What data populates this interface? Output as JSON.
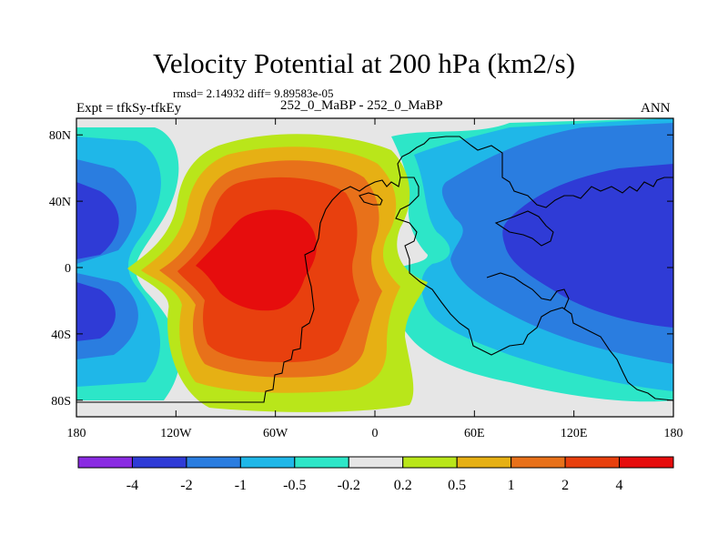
{
  "chart_data": {
    "type": "heatmap",
    "title": "Velocity Potential at 200 hPa (km2/s)",
    "stats_text": "rmsd= 2.14932 diff= 9.89583e-05",
    "experiment": "Expt = tfkSy-tfkEy",
    "cases": "252_0_MaBP - 252_0_MaBP",
    "season": "ANN",
    "x_ticks": [
      "180",
      "120W",
      "60W",
      "0",
      "60E",
      "120E",
      "180"
    ],
    "x_tick_values": [
      -180,
      -120,
      -60,
      0,
      60,
      120,
      180
    ],
    "y_ticks": [
      "80N",
      "40N",
      "0",
      "40S",
      "80S"
    ],
    "y_tick_values": [
      80,
      40,
      0,
      -40,
      -80
    ],
    "xlim": [
      -180,
      180
    ],
    "ylim": [
      -90,
      90
    ],
    "contour_levels": [
      -4,
      -2,
      -1,
      -0.5,
      -0.2,
      0.2,
      0.5,
      1,
      2,
      4
    ],
    "colorbar_labels": [
      "-4",
      "-2",
      "-1",
      "-0.5",
      "-0.2",
      "0.2",
      "0.5",
      "1",
      "2",
      "4"
    ],
    "colorbar_colors": [
      "#8a2be2",
      "#2f3bd6",
      "#2a7de0",
      "#1fb7e8",
      "#2de6c8",
      "#e6e6e6",
      "#b9e61a",
      "#e6b014",
      "#e8711a",
      "#e8400e",
      "#e60d0d"
    ],
    "field_centers": [
      {
        "name": "positive maximum",
        "lon": -95,
        "lat": 10,
        "value": 4
      },
      {
        "name": "negative minimum east",
        "lon": 150,
        "lat": 15,
        "value": -4
      },
      {
        "name": "negative minimum west",
        "lon": -170,
        "lat": 15,
        "value": -2
      }
    ]
  }
}
